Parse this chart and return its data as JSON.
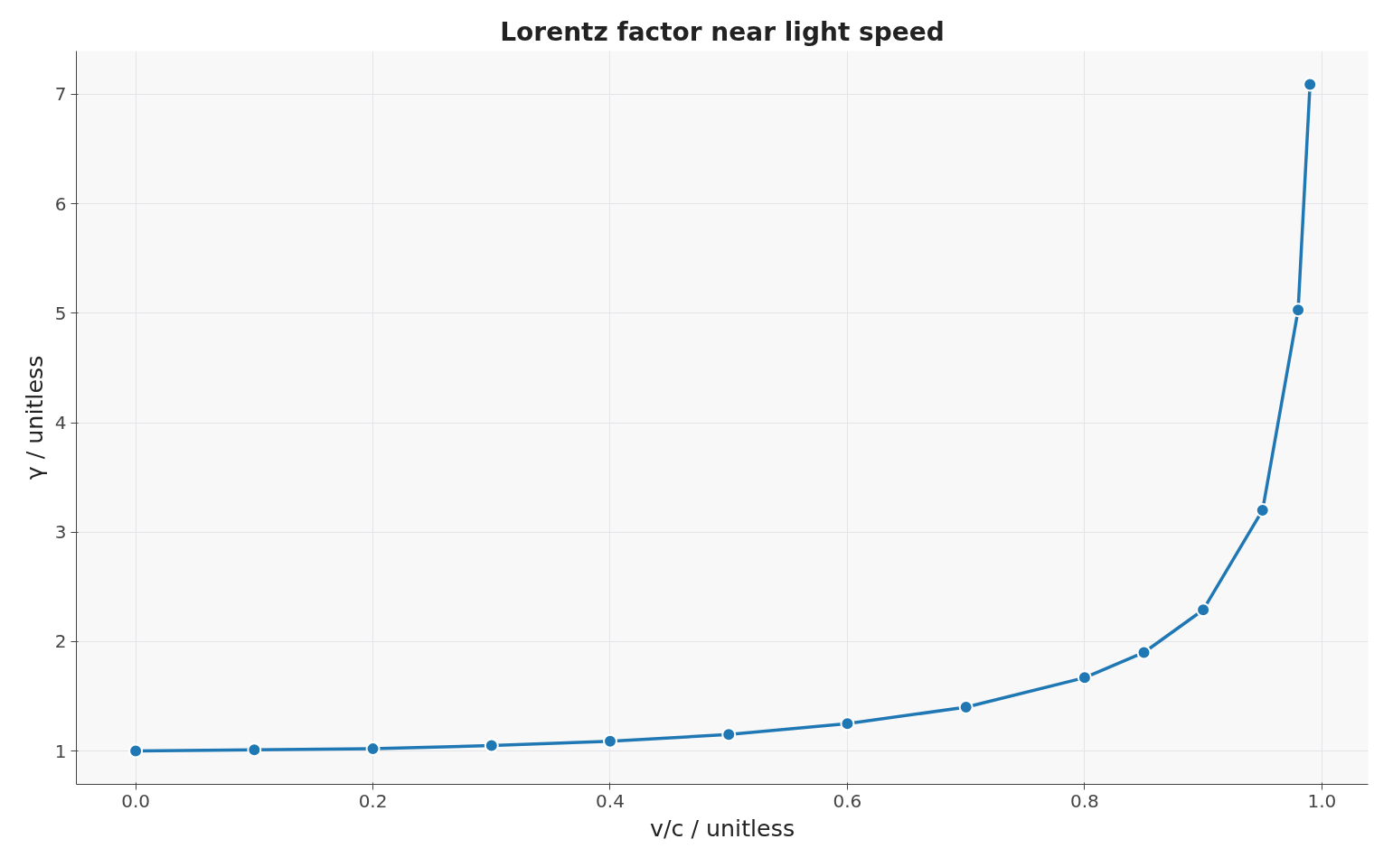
{
  "chart_data": {
    "type": "line",
    "title": "Lorentz factor near light speed",
    "xlabel": "v/c / unitless",
    "ylabel": "γ / unitless",
    "x": [
      0,
      0.1,
      0.2,
      0.3,
      0.4,
      0.5,
      0.6,
      0.7,
      0.8,
      0.85,
      0.9,
      0.95,
      0.98,
      0.99
    ],
    "series": [
      {
        "color": "#1f77b4",
        "values": [
          1.0,
          1.01,
          1.02,
          1.05,
          1.09,
          1.15,
          1.25,
          1.4,
          1.67,
          1.9,
          2.29,
          3.2,
          5.03,
          7.09
        ]
      }
    ],
    "xlim": [
      -0.05,
      1.039
    ],
    "ylim": [
      0.695,
      7.396
    ],
    "xticks": [
      {
        "value": 0,
        "label": "0.0"
      },
      0.2,
      0.4,
      0.6,
      0.8,
      {
        "value": 1,
        "label": "1.0"
      }
    ],
    "yticks": [
      1,
      2,
      3,
      4,
      5,
      6,
      7
    ],
    "grid": true,
    "marker": "circle",
    "line_style": "solid"
  }
}
